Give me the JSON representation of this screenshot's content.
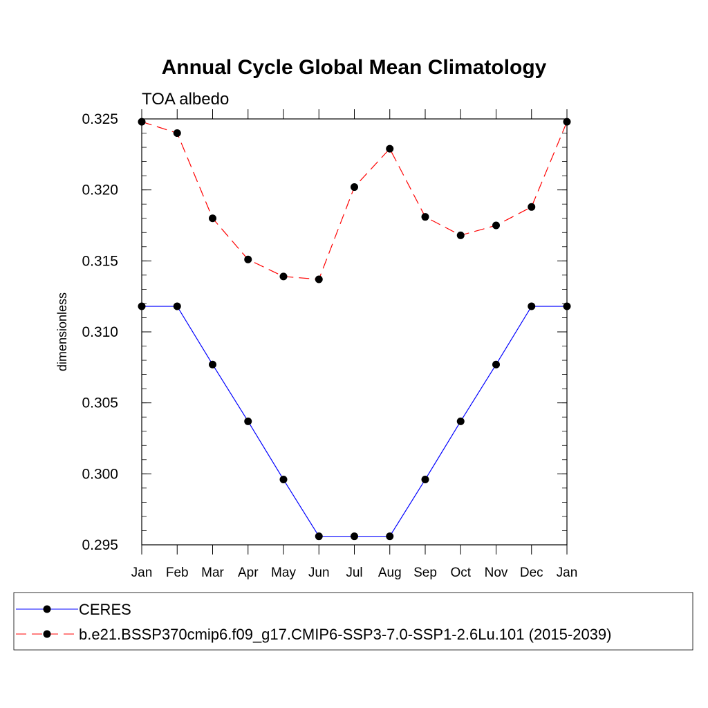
{
  "chart_data": {
    "type": "line",
    "title": "Annual Cycle Global Mean Climatology",
    "subtitle": "TOA albedo",
    "xlabel": "",
    "ylabel": "dimensionless",
    "categories": [
      "Jan",
      "Feb",
      "Mar",
      "Apr",
      "May",
      "Jun",
      "Jul",
      "Aug",
      "Sep",
      "Oct",
      "Nov",
      "Dec",
      "Jan"
    ],
    "ylim": [
      0.295,
      0.325
    ],
    "yticks": [
      0.295,
      0.3,
      0.305,
      0.31,
      0.315,
      0.32,
      0.325
    ],
    "ytick_labels": [
      "0.295",
      "0.300",
      "0.305",
      "0.310",
      "0.315",
      "0.320",
      "0.325"
    ],
    "ytick_minor_step": 0.001,
    "grid": false,
    "legend_position": "bottom",
    "series": [
      {
        "name": "CERES",
        "color": "#0000ff",
        "line_style": "solid",
        "marker": "filled-circle",
        "values": [
          0.3118,
          0.3118,
          0.3077,
          0.3037,
          0.2996,
          0.2956,
          0.2956,
          0.2956,
          0.2996,
          0.3037,
          0.3077,
          0.3118,
          0.3118
        ]
      },
      {
        "name": "b.e21.BSSP370cmip6.f09_g17.CMIP6-SSP3-7.0-SSP1-2.6Lu.101 (2015-2039)",
        "color": "#ff0000",
        "line_style": "dashed",
        "marker": "filled-circle",
        "values": [
          0.3248,
          0.324,
          0.318,
          0.3151,
          0.3139,
          0.3137,
          0.3202,
          0.3229,
          0.3181,
          0.3168,
          0.3175,
          0.3188,
          0.3248
        ]
      }
    ]
  }
}
